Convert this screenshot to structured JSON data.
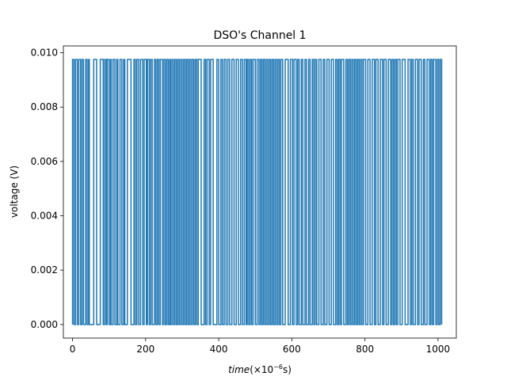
{
  "chart_data": {
    "type": "line",
    "title": "DSO's Channel 1",
    "xlabel_parts": {
      "var": "time",
      "open": "(×10",
      "exp": "−6",
      "unit": "s)"
    },
    "ylabel": "voltage (V)",
    "xlim": [
      -25,
      1050
    ],
    "ylim": [
      -0.0005,
      0.01025
    ],
    "xticks": [
      0,
      200,
      400,
      600,
      800,
      1000
    ],
    "xtick_labels": [
      "0",
      "200",
      "400",
      "600",
      "800",
      "1000"
    ],
    "yticks": [
      0.0,
      0.002,
      0.004,
      0.006,
      0.008,
      0.01
    ],
    "ytick_labels": [
      "0.000",
      "0.002",
      "0.004",
      "0.006",
      "0.008",
      "0.010"
    ],
    "grid": false,
    "legend": "none",
    "series": [
      {
        "color": "#1f77b4",
        "levels": [
          0.0,
          0.00975
        ],
        "x_range": [
          0,
          1010
        ],
        "transitions_at": [
          0,
          4,
          8,
          13,
          17,
          22,
          26,
          30,
          36,
          40,
          44,
          46,
          58,
          66,
          76,
          84,
          88,
          92,
          95,
          100,
          104,
          106,
          111,
          116,
          121,
          124,
          130,
          135,
          140,
          143,
          150,
          160,
          168,
          172,
          176,
          181,
          186,
          192,
          196,
          202,
          205,
          210,
          214,
          218,
          224,
          228,
          232,
          236,
          240,
          246,
          250,
          254,
          258,
          262,
          266,
          268,
          272,
          276,
          280,
          284,
          288,
          292,
          296,
          300,
          304,
          308,
          312,
          316,
          320,
          324,
          328,
          332,
          336,
          340,
          344,
          352,
          360,
          364,
          368,
          374,
          378,
          385,
          395,
          400,
          406,
          410,
          415,
          420,
          425,
          430,
          436,
          442,
          448,
          454,
          460,
          465,
          470,
          475,
          478,
          482,
          486,
          490,
          494,
          500,
          505,
          510,
          514,
          518,
          522,
          526,
          530,
          534,
          538,
          542,
          546,
          550,
          554,
          558,
          562,
          566,
          570,
          575,
          582,
          590,
          596,
          602,
          606,
          612,
          616,
          620,
          626,
          630,
          636,
          640,
          646,
          650,
          656,
          660,
          664,
          668,
          674,
          680,
          686,
          690,
          696,
          702,
          708,
          714,
          720,
          724,
          728,
          732,
          736,
          742,
          748,
          752,
          756,
          760,
          764,
          768,
          772,
          776,
          780,
          784,
          788,
          792,
          796,
          802,
          808,
          814,
          820,
          826,
          830,
          836,
          842,
          848,
          852,
          858,
          864,
          870,
          874,
          878,
          882,
          886,
          890,
          896,
          902,
          910,
          918,
          924,
          928,
          932,
          938,
          944,
          948,
          954,
          960,
          964,
          970,
          976,
          980,
          984,
          988,
          994,
          998,
          1002,
          1006,
          1010
        ]
      }
    ]
  }
}
